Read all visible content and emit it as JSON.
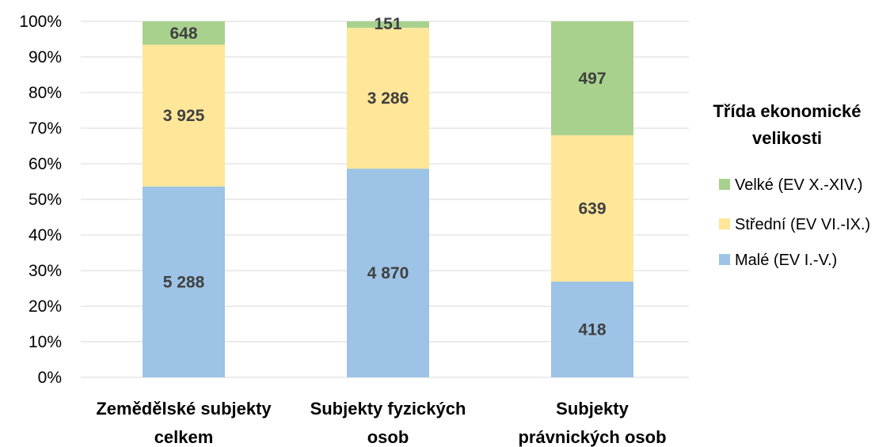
{
  "chart_data": {
    "type": "bar",
    "stacked": "percent",
    "categories": [
      [
        "Zemědělské subjekty",
        "celkem"
      ],
      [
        "Subjekty fyzických",
        "osob"
      ],
      [
        "Subjekty",
        "právnických osob"
      ]
    ],
    "series": [
      {
        "name": "Malé (EV I.-V.)",
        "color": "#9DC3E6",
        "values": [
          5288,
          4870,
          418
        ],
        "labels": [
          "5 288",
          "4 870",
          "418"
        ]
      },
      {
        "name": "Střední (EV VI.-IX.)",
        "color": "#FFE699",
        "values": [
          3925,
          3286,
          639
        ],
        "labels": [
          "3 925",
          "3 286",
          "639"
        ]
      },
      {
        "name": "Velké (EV X.-XIV.)",
        "color": "#A9D18E",
        "values": [
          648,
          151,
          497
        ],
        "labels": [
          "648",
          "151",
          "497"
        ]
      }
    ],
    "yticks": [
      "0%",
      "10%",
      "20%",
      "30%",
      "40%",
      "50%",
      "60%",
      "70%",
      "80%",
      "90%",
      "100%"
    ],
    "ylim": [
      0,
      100
    ],
    "grid": true,
    "legend": {
      "title": [
        "Třída ekonomické",
        "velikosti"
      ],
      "position": "right",
      "order": [
        "Velké (EV X.-XIV.)",
        "Střední (EV VI.-IX.)",
        "Malé (EV I.-V.)"
      ]
    }
  }
}
